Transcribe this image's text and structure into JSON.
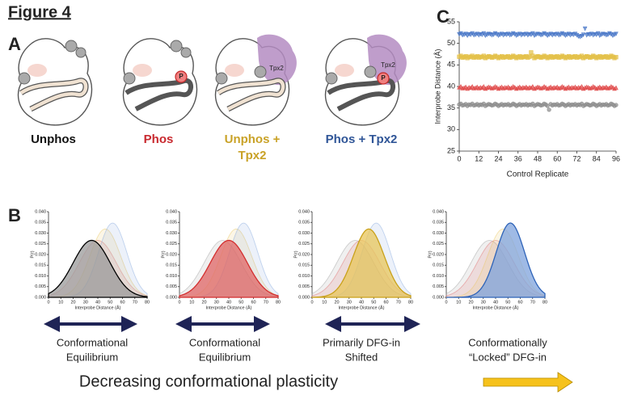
{
  "figure_title": "Figure 4",
  "panel_a": {
    "letter": "A",
    "tpx2_label": "Tpx2",
    "phospho_label": "P",
    "states": [
      {
        "label": [
          "Unphos"
        ],
        "color": "#111111"
      },
      {
        "label": [
          "Phos"
        ],
        "color": "#c8282e"
      },
      {
        "label": [
          "Unphos +",
          "Tpx2"
        ],
        "color": "#c9a227"
      },
      {
        "label": [
          "Phos + Tpx2"
        ],
        "color": "#2f5597"
      }
    ]
  },
  "footer": {
    "text": "Decreasing conformational plasticity"
  },
  "chart_data": [
    {
      "type": "density",
      "letter": "B",
      "xlabel": "Interprobe Distance (Å)",
      "ylabel": "P(r)",
      "xlim": [
        0,
        80
      ],
      "ylim": [
        0,
        0.04
      ],
      "xticks": [
        0,
        10,
        20,
        30,
        40,
        50,
        60,
        70,
        80
      ],
      "yticks": [
        {
          "value": 0,
          "label": "0.000"
        },
        {
          "value": 0.005,
          "label": "0.005"
        },
        {
          "value": 0.01,
          "label": "0.010"
        },
        {
          "value": 0.015,
          "label": "0.015"
        },
        {
          "value": 0.02,
          "label": "0.020"
        },
        {
          "value": 0.025,
          "label": "0.025"
        },
        {
          "value": 0.03,
          "label": "0.030"
        },
        {
          "value": 0.035,
          "label": "0.035"
        },
        {
          "value": 0.04,
          "label": "0.040"
        }
      ],
      "distributions": [
        {
          "mean": 35,
          "sd": 15,
          "color": "#9a9a9a",
          "line_color": "#000000"
        },
        {
          "mean": 40,
          "sd": 15,
          "color": "#e06666",
          "line_color": "#d32f2f"
        },
        {
          "mean": 46,
          "sd": 12.5,
          "color": "#e8c55a",
          "line_color": "#c9a11a"
        },
        {
          "mean": 52,
          "sd": 11.5,
          "color": "#7fa3dc",
          "line_color": "#2e63b8"
        }
      ],
      "panels": [
        {
          "highlight": 0,
          "caption": [
            "Conformational",
            "Equilibrium"
          ]
        },
        {
          "highlight": 1,
          "caption": [
            "Conformational",
            "Equilibrium"
          ]
        },
        {
          "highlight": 2,
          "caption": [
            "Primarily DFG-in",
            "Shifted"
          ]
        },
        {
          "highlight": 3,
          "caption": [
            "Conformationally",
            "“Locked” DFG-in"
          ]
        }
      ]
    },
    {
      "type": "scatter",
      "letter": "C",
      "xlabel": "Control Replicate",
      "ylabel": "Interprobe Distance (Å)",
      "xlim": [
        0,
        96
      ],
      "ylim": [
        25,
        55
      ],
      "xticks": [
        0,
        12,
        24,
        36,
        48,
        60,
        72,
        84,
        96
      ],
      "yticks": [
        25,
        30,
        35,
        40,
        45,
        50,
        55
      ],
      "x": [
        0,
        1,
        2,
        3,
        4,
        5,
        6,
        7,
        8,
        9,
        10,
        11,
        12,
        13,
        14,
        15,
        16,
        17,
        18,
        19,
        20,
        21,
        22,
        23,
        24,
        25,
        26,
        27,
        28,
        29,
        30,
        31,
        32,
        33,
        34,
        35,
        36,
        37,
        38,
        39,
        40,
        41,
        42,
        43,
        44,
        45,
        46,
        47,
        48,
        49,
        50,
        51,
        52,
        53,
        54,
        55,
        56,
        57,
        58,
        59,
        60,
        61,
        62,
        63,
        64,
        65,
        66,
        67,
        68,
        69,
        70,
        71,
        72,
        73,
        74,
        75,
        76,
        77,
        78,
        79,
        80,
        81,
        82,
        83,
        84,
        85,
        86,
        87,
        88,
        89,
        90,
        91,
        92,
        93,
        94,
        95,
        96
      ],
      "series": [
        {
          "marker": "triangle-down",
          "color": "#4a78c8",
          "values": [
            52.1,
            52.3,
            51.9,
            52.0,
            52.2,
            51.8,
            52.1,
            52.0,
            52.3,
            51.9,
            52.0,
            52.2,
            51.9,
            52.1,
            52.0,
            52.3,
            51.8,
            52.0,
            52.2,
            52.1,
            51.9,
            52.0,
            52.3,
            52.1,
            51.8,
            52.0,
            52.2,
            51.9,
            52.1,
            52.0,
            52.2,
            51.9,
            52.0,
            52.3,
            52.1,
            51.8,
            52.0,
            52.2,
            51.9,
            52.1,
            52.0,
            52.2,
            51.9,
            52.1,
            52.0,
            52.3,
            51.8,
            52.0,
            52.2,
            52.1,
            51.9,
            52.0,
            52.3,
            52.1,
            51.8,
            52.0,
            52.2,
            51.9,
            52.1,
            52.0,
            52.2,
            51.9,
            52.0,
            52.3,
            52.1,
            51.8,
            52.0,
            52.2,
            51.9,
            52.1,
            52.0,
            52.2,
            51.9,
            51.6,
            51.5,
            51.7,
            52.0,
            53.4,
            51.9,
            52.1,
            52.0,
            52.2,
            51.9,
            52.1,
            52.0,
            52.3,
            51.8,
            52.0,
            52.2,
            52.1,
            51.9,
            52.0,
            52.3,
            52.1,
            51.8,
            52.0,
            52.2
          ]
        },
        {
          "marker": "square",
          "color": "#e3bf45",
          "values": [
            46.9,
            47.1,
            46.7,
            46.8,
            47.0,
            46.6,
            46.9,
            46.8,
            47.1,
            46.7,
            46.8,
            47.0,
            46.7,
            46.9,
            46.8,
            47.1,
            46.6,
            46.8,
            47.0,
            46.9,
            46.7,
            46.8,
            47.1,
            46.9,
            46.6,
            46.8,
            47.0,
            46.7,
            46.9,
            46.8,
            47.0,
            46.7,
            46.8,
            47.1,
            46.9,
            46.6,
            46.8,
            47.0,
            46.7,
            46.9,
            46.8,
            47.0,
            46.7,
            46.9,
            47.9,
            47.1,
            46.6,
            46.8,
            47.0,
            46.9,
            46.7,
            46.8,
            47.1,
            46.9,
            46.6,
            46.8,
            47.0,
            46.7,
            46.9,
            46.8,
            47.0,
            46.7,
            46.8,
            47.1,
            46.9,
            46.6,
            46.8,
            47.0,
            46.7,
            46.9,
            46.8,
            47.0,
            46.7,
            46.9,
            46.8,
            47.1,
            46.6,
            46.8,
            47.0,
            46.9,
            46.7,
            46.8,
            47.1,
            46.9,
            46.6,
            46.8,
            47.0,
            46.7,
            46.9,
            46.8,
            47.0,
            46.7,
            46.8,
            47.1,
            46.9,
            46.6,
            46.8
          ]
        },
        {
          "marker": "triangle-up",
          "color": "#e04848",
          "values": [
            39.8,
            40.0,
            39.6,
            39.7,
            39.9,
            39.5,
            39.8,
            39.7,
            40.0,
            39.6,
            39.7,
            39.9,
            39.6,
            39.8,
            39.7,
            40.0,
            39.5,
            39.7,
            39.9,
            39.8,
            39.6,
            39.7,
            40.0,
            39.8,
            39.5,
            39.7,
            39.9,
            39.6,
            39.8,
            39.7,
            39.9,
            39.6,
            39.7,
            40.0,
            39.8,
            39.5,
            39.7,
            39.9,
            39.6,
            39.8,
            39.7,
            39.9,
            39.6,
            39.8,
            39.7,
            40.0,
            39.5,
            39.7,
            39.9,
            39.8,
            39.6,
            39.7,
            40.0,
            39.8,
            39.5,
            39.7,
            39.9,
            39.6,
            39.8,
            39.7,
            39.9,
            39.6,
            39.7,
            40.0,
            39.8,
            39.5,
            39.7,
            39.9,
            39.6,
            39.8,
            39.7,
            39.9,
            39.6,
            39.8,
            39.7,
            40.0,
            39.5,
            39.7,
            39.9,
            39.8,
            39.6,
            39.7,
            40.0,
            39.8,
            39.5,
            39.7,
            39.9,
            39.6,
            39.8,
            39.7,
            39.9,
            39.6,
            39.7,
            40.0,
            39.8,
            39.5,
            39.7
          ]
        },
        {
          "marker": "circle",
          "color": "#8c8c8c",
          "values": [
            35.8,
            36.0,
            35.6,
            35.7,
            35.9,
            35.5,
            35.8,
            35.7,
            36.0,
            35.6,
            35.7,
            35.9,
            35.6,
            35.8,
            35.7,
            36.0,
            35.5,
            35.7,
            35.9,
            35.8,
            35.6,
            35.7,
            36.0,
            35.8,
            35.5,
            35.7,
            35.9,
            35.6,
            35.8,
            35.7,
            35.9,
            35.6,
            35.7,
            36.0,
            35.8,
            35.5,
            35.7,
            35.9,
            35.6,
            35.8,
            35.7,
            35.9,
            35.6,
            35.8,
            35.7,
            36.0,
            35.5,
            35.7,
            35.9,
            35.8,
            35.6,
            35.7,
            36.0,
            35.8,
            35.5,
            34.6,
            35.9,
            35.6,
            35.8,
            35.7,
            35.9,
            35.6,
            35.7,
            36.0,
            35.8,
            35.5,
            35.7,
            35.9,
            35.6,
            35.8,
            35.7,
            35.9,
            35.6,
            35.8,
            35.7,
            36.0,
            35.5,
            35.7,
            35.9,
            35.8,
            35.6,
            35.7,
            36.0,
            35.8,
            35.5,
            35.7,
            35.9,
            35.6,
            35.8,
            35.7,
            35.9,
            35.6,
            35.7,
            36.0,
            35.8,
            35.5,
            35.7
          ]
        }
      ]
    }
  ]
}
